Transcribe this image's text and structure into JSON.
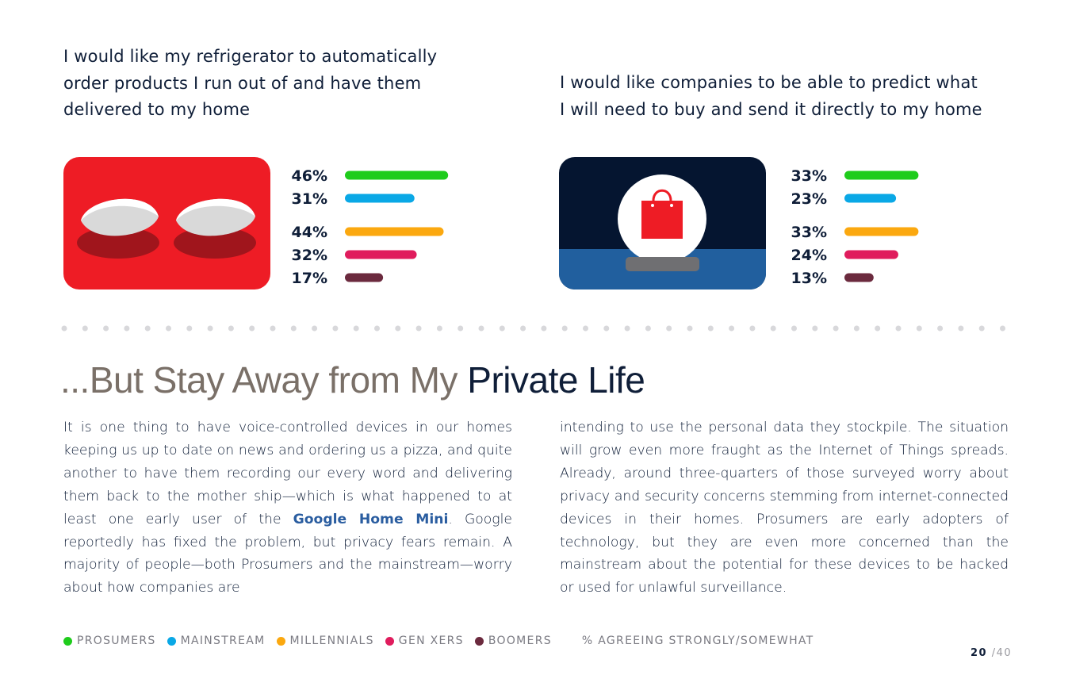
{
  "question1": {
    "text_lines": [
      "I would like my refrigerator to automatically",
      "order products I run out of and have them",
      "delivered to my home"
    ]
  },
  "question2": {
    "text_lines": [
      "I would like companies to be able to predict what",
      "I will need to buy and send it directly to my home"
    ]
  },
  "chart_data": [
    {
      "type": "bar",
      "orientation": "horizontal",
      "categories": [
        "Prosumers",
        "Mainstream",
        "Millennials",
        "Gen Xers",
        "Boomers"
      ],
      "values": [
        46,
        31,
        44,
        32,
        17
      ],
      "labels": [
        "46%",
        "31%",
        "44%",
        "32%",
        "17%"
      ],
      "colors": [
        "#1fcc1c",
        "#0aa8e6",
        "#fba80f",
        "#e01c5d",
        "#6b2a3e"
      ],
      "title": "I would like my refrigerator to automatically order products I run out of and have them delivered to my home",
      "xlim": [
        0,
        100
      ]
    },
    {
      "type": "bar",
      "orientation": "horizontal",
      "categories": [
        "Prosumers",
        "Mainstream",
        "Millennials",
        "Gen Xers",
        "Boomers"
      ],
      "values": [
        33,
        23,
        33,
        24,
        13
      ],
      "labels": [
        "33%",
        "23%",
        "33%",
        "24%",
        "13%"
      ],
      "colors": [
        "#1fcc1c",
        "#0aa8e6",
        "#fba80f",
        "#e01c5d",
        "#6b2a3e"
      ],
      "title": "I would like companies to be able to predict what I will need to buy and send it directly to my home",
      "xlim": [
        0,
        100
      ]
    }
  ],
  "section": {
    "heading_part1": "...But Stay Away from My ",
    "heading_part2": "Private Life",
    "col1_before_link": "It is one thing to have voice-controlled devices in our homes keeping us up to date on news and ordering us a pizza, and quite another to have them recording our every word and delivering them back to the mother ship—which is what happened to at least one early user of the ",
    "col1_link": "Google Home Mini",
    "col1_after_link": ". Google reportedly has fixed the problem, but privacy fears remain. A majority of people—both Prosumers and the mainstream—worry about how companies are",
    "col2": "intending to use the personal data they stockpile. The situation will grow even more fraught as the Internet of Things spreads. Already, around three-quarters of those surveyed worry about privacy and security concerns stemming from internet-connected devices in their homes. Prosumers are early adopters of technology, but they are even more concerned than the mainstream about the potential for these devices to be hacked or used for unlawful surveillance."
  },
  "legend": {
    "items": [
      {
        "label": "PROSUMERS",
        "color": "#1fcc1c"
      },
      {
        "label": "MAINSTREAM",
        "color": "#0aa8e6"
      },
      {
        "label": "MILLENNIALS",
        "color": "#fba80f"
      },
      {
        "label": "GEN XERS",
        "color": "#e01c5d"
      },
      {
        "label": "BOOMERS",
        "color": "#6b2a3e"
      }
    ],
    "note": "% AGREEING STRONGLY/SOMEWHAT"
  },
  "page": {
    "current": "20",
    "separator": "/",
    "total": "40"
  },
  "icons": {
    "illustration1": "refrigerator-eggs-icon",
    "illustration2": "crystal-ball-shopping-bag-icon"
  }
}
